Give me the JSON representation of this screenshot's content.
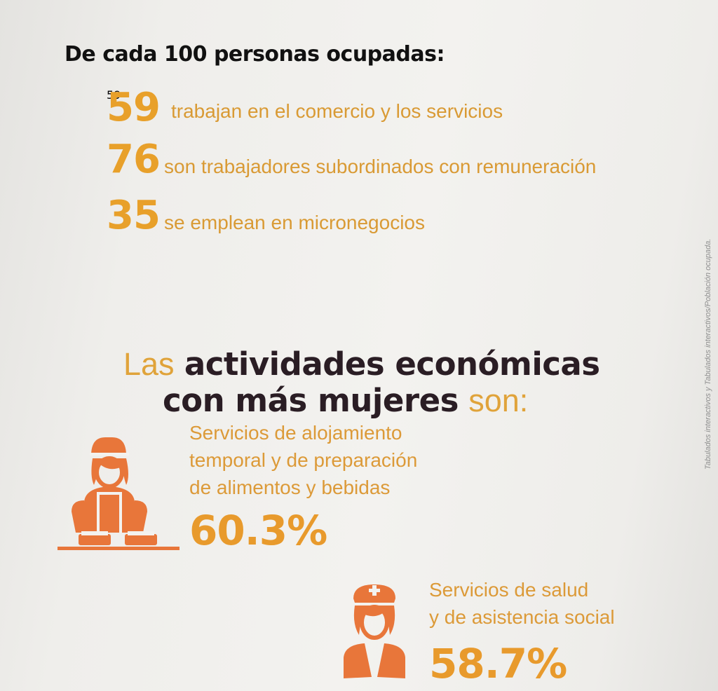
{
  "heading": "De cada 100 personas ocupadas:",
  "stats": [
    {
      "number": "59",
      "text": "trabajan en el comercio y los servicios"
    },
    {
      "number": "76",
      "text": "son trabajadores subordinados con remuneración"
    },
    {
      "number": "35",
      "text": "se emplean en micronegocios"
    }
  ],
  "section_title": {
    "pre": "Las",
    "bold_line1": "actividades económicas",
    "bold_line2": "con más mujeres",
    "post": "son:"
  },
  "activities": [
    {
      "label_lines": [
        "Servicios de alojamiento",
        "temporal y de preparación",
        "de alimentos y bebidas"
      ],
      "percent": "60.3%",
      "icon": "cook-woman-icon"
    },
    {
      "label_lines": [
        "Servicios de salud",
        "y de asistencia social"
      ],
      "percent": "58.7%",
      "icon": "nurse-icon"
    }
  ],
  "side_note": "Tabulados interactivos y Tabulados interactivos/Población ocupada.",
  "colors": {
    "accent": "#e8a02a",
    "icon": "#e8763a",
    "dark": "#2a1d24",
    "heading": "#111111"
  }
}
